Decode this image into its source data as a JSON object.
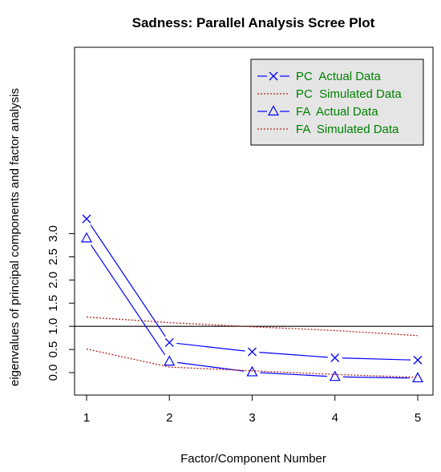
{
  "chart_data": {
    "type": "line",
    "title": "Sadness: Parallel Analysis Scree Plot",
    "xlabel": "Factor/Component Number",
    "ylabel": "eigenvalues of principal components and factor analysis",
    "x": [
      1,
      2,
      3,
      4,
      5
    ],
    "xlim": [
      0.95,
      5.05
    ],
    "ylim": [
      -0.25,
      3.4
    ],
    "xticks": [
      "1",
      "2",
      "3",
      "4",
      "5"
    ],
    "yticks": [
      "0.0",
      "0.5",
      "1.0",
      "1.5",
      "2.0",
      "2.5",
      "3.0"
    ],
    "reference_line": 1.0,
    "grid": false,
    "legend_position": "top-right",
    "series": [
      {
        "name": "PC  Actual Data",
        "values": [
          3.32,
          0.65,
          0.45,
          0.32,
          0.27
        ],
        "color": "#0000ff",
        "marker": "x",
        "line": "solid"
      },
      {
        "name": "PC  Simulated Data",
        "values": [
          1.2,
          1.08,
          0.99,
          0.91,
          0.8
        ],
        "color": "#b22222",
        "marker": "none",
        "line": "dotted"
      },
      {
        "name": "FA  Actual Data",
        "values": [
          2.9,
          0.24,
          0.01,
          -0.09,
          -0.12
        ],
        "color": "#0000ff",
        "marker": "triangle",
        "line": "solid"
      },
      {
        "name": "FA  Simulated Data",
        "values": [
          0.51,
          0.12,
          0.04,
          -0.04,
          -0.1
        ],
        "color": "#b22222",
        "marker": "none",
        "line": "dotted"
      }
    ],
    "legend_text_color": "#008000",
    "legend_bg": "#e5e5e5"
  }
}
